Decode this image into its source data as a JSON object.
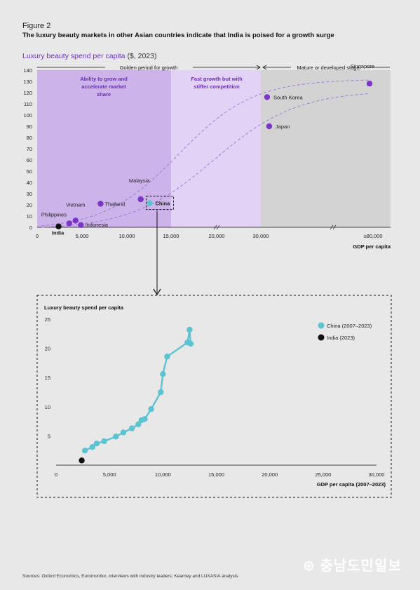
{
  "figure_label": "Figure 2",
  "figure_title": "The luxury beauty markets in other Asian countries indicate that India is poised for a growth surge",
  "subtitle": "Luxury beauty spend per capita",
  "subtitle_unit": "($, 2023)",
  "source": "Sources: Oxford Economics, Euromonitor, interviews with industry leaders; Kearney and LUXASIA analysis",
  "watermark": "충남도민일보",
  "colors": {
    "purple_dark": "#7b35c8",
    "purple_zone1": "#ccb3ea",
    "purple_zone2": "#e2d2f6",
    "grey_zone": "#d3d3d3",
    "teal": "#5bc3d1",
    "black": "#111111",
    "title_purple": "#6a2fb4"
  },
  "chart_data": [
    {
      "type": "scatter",
      "title": "",
      "xlabel": "GDP per capita",
      "ylabel": "",
      "ylim": [
        0,
        140
      ],
      "y_ticks": [
        "0",
        "10",
        "20",
        "30",
        "40",
        "50",
        "60",
        "70",
        "80",
        "90",
        "100",
        "110",
        "120",
        "130",
        "140"
      ],
      "x_ticks": [
        "0",
        "5,000",
        "10,000",
        "15,000",
        "20,000",
        "30,000",
        "≥80,000"
      ],
      "zones": [
        {
          "header": "Golden period for growth",
          "label": "Ability to grow and accelerate market share"
        },
        {
          "header": "",
          "label": "Fast growth but with stiffer competition"
        },
        {
          "header": "Mature or developed stage",
          "label": ""
        }
      ],
      "grid": false,
      "curve_style": "dashed",
      "points": [
        {
          "label": "India",
          "x": 2400,
          "y": 0.8,
          "color": "black"
        },
        {
          "label": "Philippines",
          "x": 3600,
          "y": 3.5,
          "color": "purple"
        },
        {
          "label": "Vietnam",
          "x": 4300,
          "y": 6,
          "color": "purple"
        },
        {
          "label": "Indonesia",
          "x": 4900,
          "y": 2,
          "color": "purple"
        },
        {
          "label": "Thailand",
          "x": 7100,
          "y": 21,
          "color": "purple"
        },
        {
          "label": "Malaysia",
          "x": 11600,
          "y": 25,
          "color": "purple"
        },
        {
          "label": "China",
          "x": 12600,
          "y": 21.5,
          "color": "teal"
        },
        {
          "label": "South Korea",
          "x": 33000,
          "y": 116,
          "color": "purple"
        },
        {
          "label": "Japan",
          "x": 34000,
          "y": 90,
          "color": "purple"
        },
        {
          "label": "Singapore",
          "x": 85000,
          "y": 128,
          "color": "purple"
        }
      ]
    },
    {
      "type": "line",
      "title": "Luxury beauty spend per capita",
      "xlabel": "GDP per capita (2007–2023)",
      "ylabel": "",
      "xlim": [
        0,
        30000
      ],
      "ylim": [
        0,
        25
      ],
      "x_ticks": [
        "0",
        "5,000",
        "10,000",
        "15,000",
        "20,000",
        "25,000",
        "30,000"
      ],
      "y_ticks": [
        "5",
        "10",
        "15",
        "20",
        "25"
      ],
      "grid": false,
      "legend_position": "top-right",
      "series": [
        {
          "name": "China (2007–2023)",
          "color": "teal",
          "x": [
            2700,
            3400,
            3800,
            4500,
            5600,
            6300,
            7100,
            7700,
            8000,
            8300,
            8900,
            9800,
            10000,
            10400,
            12300,
            12500,
            12600
          ],
          "y": [
            2.5,
            3.1,
            3.7,
            4.1,
            4.9,
            5.6,
            6.3,
            7.0,
            7.7,
            7.9,
            9.6,
            12.5,
            15.6,
            18.6,
            21.0,
            23.2,
            20.8
          ]
        },
        {
          "name": "India (2023)",
          "color": "black",
          "x": [
            2400
          ],
          "y": [
            0.8
          ]
        }
      ]
    }
  ]
}
